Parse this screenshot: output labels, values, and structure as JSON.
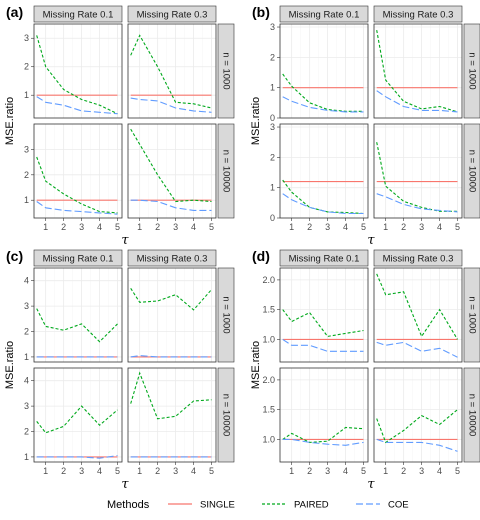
{
  "colors": {
    "SINGLE": "#F8766D",
    "PAIRED": "#00A91C",
    "COE": "#619CFF",
    "strip_bg": "#D9D9D9",
    "strip_border": "#333333",
    "grid": "#EBEBEB",
    "panel_border": "#333333"
  },
  "legend": {
    "title": "Methods",
    "items": [
      {
        "key": "SINGLE",
        "label": "SINGLE",
        "dash": ""
      },
      {
        "key": "PAIRED",
        "label": "PAIRED",
        "dash": "3,2"
      },
      {
        "key": "COE",
        "label": "COE",
        "dash": "7,3"
      }
    ]
  },
  "chart_data": [
    {
      "label": "(a)",
      "type": "line",
      "xlabel": "τ",
      "ylabel": "MSE.ratio",
      "x": [
        0.5,
        1,
        2,
        3,
        4,
        5
      ],
      "xticks": [
        1,
        2,
        3,
        4,
        5
      ],
      "columns": [
        "Missing Rate 0.1",
        "Missing Rate 0.3"
      ],
      "rows": [
        {
          "strip": "n = 1000",
          "ylim": [
            0.2,
            3.5
          ],
          "yticks": [
            1,
            2,
            3
          ]
        },
        {
          "strip": "n = 10000",
          "ylim": [
            0.3,
            4.0
          ],
          "yticks": [
            1,
            2,
            3
          ]
        }
      ],
      "panels": [
        [
          {
            "SINGLE": [
              1,
              1,
              1,
              1,
              1,
              1
            ],
            "PAIRED": [
              3.1,
              2.0,
              1.2,
              0.85,
              0.65,
              0.35
            ],
            "COE": [
              0.95,
              0.75,
              0.65,
              0.45,
              0.4,
              0.35
            ]
          },
          {
            "SINGLE": [
              1,
              1,
              1,
              1,
              1,
              1
            ],
            "PAIRED": [
              2.4,
              3.1,
              2.0,
              0.75,
              0.7,
              0.55
            ],
            "COE": [
              0.9,
              0.85,
              0.8,
              0.55,
              0.45,
              0.4
            ]
          }
        ],
        [
          {
            "SINGLE": [
              1,
              1,
              1,
              1,
              1,
              1
            ],
            "PAIRED": [
              2.7,
              1.75,
              1.25,
              0.85,
              0.55,
              0.5
            ],
            "COE": [
              0.95,
              0.7,
              0.6,
              0.55,
              0.5,
              0.45
            ]
          },
          {
            "SINGLE": [
              1,
              1,
              1,
              1,
              1,
              1
            ],
            "PAIRED": [
              3.8,
              3.2,
              2.0,
              0.95,
              1.0,
              0.95
            ],
            "COE": [
              1.0,
              1.0,
              0.95,
              0.7,
              0.6,
              0.6
            ]
          }
        ]
      ]
    },
    {
      "label": "(b)",
      "type": "line",
      "xlabel": "τ",
      "ylabel": "MSE.ratio",
      "x": [
        0.5,
        1,
        2,
        3,
        4,
        5
      ],
      "xticks": [
        1,
        2,
        3,
        4,
        5
      ],
      "columns": [
        "Missing Rate 0.1",
        "Missing Rate 0.3"
      ],
      "rows": [
        {
          "strip": "n = 1000",
          "ylim": [
            0,
            3.1
          ],
          "yticks": [
            0,
            1,
            2,
            3
          ]
        },
        {
          "strip": "n = 10000",
          "ylim": [
            0,
            3.1
          ],
          "yticks": [
            0,
            1,
            2,
            3
          ]
        }
      ],
      "panels": [
        [
          {
            "SINGLE": [
              1,
              1,
              1,
              1,
              1,
              1
            ],
            "PAIRED": [
              1.45,
              1.05,
              0.5,
              0.28,
              0.22,
              0.22
            ],
            "COE": [
              0.7,
              0.55,
              0.35,
              0.25,
              0.2,
              0.2
            ]
          },
          {
            "SINGLE": [
              1,
              1,
              1,
              1,
              1,
              1
            ],
            "PAIRED": [
              2.9,
              1.25,
              0.55,
              0.3,
              0.38,
              0.2
            ],
            "COE": [
              0.9,
              0.7,
              0.38,
              0.25,
              0.25,
              0.2
            ]
          }
        ],
        [
          {
            "SINGLE": [
              1.2,
              1.2,
              1.2,
              1.2,
              1.2,
              1.2
            ],
            "PAIRED": [
              1.25,
              0.85,
              0.35,
              0.2,
              0.18,
              0.15
            ],
            "COE": [
              0.8,
              0.6,
              0.35,
              0.2,
              0.15,
              0.15
            ]
          },
          {
            "SINGLE": [
              1.2,
              1.2,
              1.2,
              1.2,
              1.2,
              1.2
            ],
            "PAIRED": [
              2.5,
              1.05,
              0.55,
              0.35,
              0.22,
              0.22
            ],
            "COE": [
              0.8,
              0.7,
              0.45,
              0.3,
              0.25,
              0.2
            ]
          }
        ]
      ]
    },
    {
      "label": "(c)",
      "type": "line",
      "xlabel": "τ",
      "ylabel": "MSE.ratio",
      "x": [
        0.5,
        1,
        2,
        3,
        4,
        5
      ],
      "xticks": [
        1,
        2,
        3,
        4,
        5
      ],
      "columns": [
        "Missing Rate 0.1",
        "Missing Rate 0.3"
      ],
      "rows": [
        {
          "strip": "n = 1000",
          "ylim": [
            0.8,
            4.5
          ],
          "yticks": [
            1,
            2,
            3,
            4
          ]
        },
        {
          "strip": "n = 10000",
          "ylim": [
            0.8,
            4.5
          ],
          "yticks": [
            1,
            2,
            3,
            4
          ]
        }
      ],
      "panels": [
        [
          {
            "SINGLE": [
              1,
              1,
              1,
              1,
              1,
              1
            ],
            "PAIRED": [
              2.9,
              2.2,
              2.05,
              2.3,
              1.6,
              2.3
            ],
            "COE": [
              1,
              1,
              1,
              1,
              1,
              1
            ]
          },
          {
            "SINGLE": [
              1,
              1,
              1,
              1,
              1,
              1
            ],
            "PAIRED": [
              3.7,
              3.15,
              3.2,
              3.45,
              2.85,
              3.65
            ],
            "COE": [
              1,
              1.05,
              1,
              1,
              1,
              1
            ]
          }
        ],
        [
          {
            "SINGLE": [
              1,
              1,
              1,
              1,
              1,
              1
            ],
            "PAIRED": [
              2.4,
              1.95,
              2.2,
              3.0,
              2.25,
              2.85
            ],
            "COE": [
              1,
              1,
              1,
              1,
              0.95,
              1.05
            ]
          },
          {
            "SINGLE": [
              1,
              1,
              1,
              1,
              1,
              1
            ],
            "PAIRED": [
              3.1,
              4.3,
              2.5,
              2.6,
              3.2,
              3.25
            ],
            "COE": [
              1,
              1,
              1,
              1,
              1,
              1
            ]
          }
        ]
      ]
    },
    {
      "label": "(d)",
      "type": "line",
      "xlabel": "τ",
      "ylabel": "MSE.ratio",
      "x": [
        0.5,
        1,
        2,
        3,
        4,
        5
      ],
      "xticks": [
        1,
        2,
        3,
        4,
        5
      ],
      "columns": [
        "Missing Rate 0.1",
        "Missing Rate 0.3"
      ],
      "rows": [
        {
          "strip": "n = 1000",
          "ylim": [
            0.62,
            2.2
          ],
          "yticks": [
            1.0,
            1.5,
            2.0
          ]
        },
        {
          "strip": "n = 10000",
          "ylim": [
            0.62,
            2.2
          ],
          "yticks": [
            1.0,
            1.5,
            2.0
          ]
        }
      ],
      "panels": [
        [
          {
            "SINGLE": [
              1,
              1,
              1,
              1,
              1,
              1
            ],
            "PAIRED": [
              1.5,
              1.3,
              1.45,
              1.05,
              1.1,
              1.15
            ],
            "COE": [
              1.0,
              0.9,
              0.9,
              0.8,
              0.8,
              0.8
            ]
          },
          {
            "SINGLE": [
              1,
              1,
              1,
              1,
              1,
              1
            ],
            "PAIRED": [
              2.1,
              1.75,
              1.8,
              1.05,
              1.5,
              1.0
            ],
            "COE": [
              0.95,
              0.9,
              0.95,
              0.8,
              0.85,
              0.7
            ]
          }
        ],
        [
          {
            "SINGLE": [
              1,
              1,
              1,
              1,
              1,
              1
            ],
            "PAIRED": [
              1.0,
              1.1,
              0.95,
              0.97,
              1.2,
              1.18
            ],
            "COE": [
              1.0,
              1.0,
              0.95,
              0.92,
              0.9,
              0.95
            ]
          },
          {
            "SINGLE": [
              1,
              1,
              1,
              1,
              1,
              1
            ],
            "PAIRED": [
              1.35,
              0.95,
              1.15,
              1.4,
              1.25,
              1.5
            ],
            "COE": [
              1.0,
              0.95,
              0.95,
              0.95,
              0.9,
              0.8
            ]
          }
        ]
      ]
    }
  ]
}
